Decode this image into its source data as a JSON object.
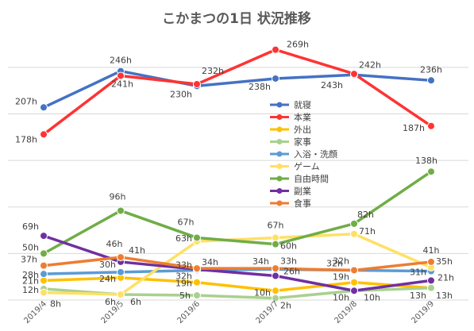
{
  "chart_data": {
    "type": "line",
    "title": "こかまつの1日 状況推移",
    "x": [
      "2019/4",
      "2019/5",
      "2019/6",
      "2019/7",
      "2019/8",
      "2019/9"
    ],
    "ylim": [
      0,
      290
    ],
    "grid": true,
    "legend_position": "center",
    "series": [
      {
        "name": "就寝",
        "color": "#4472C4",
        "values": [
          207,
          246,
          230,
          238,
          242,
          236
        ],
        "labels": [
          "207h",
          "246h",
          "230h",
          "238h",
          "242h",
          "236h"
        ]
      },
      {
        "name": "本業",
        "color": "#FF3333",
        "values": [
          178,
          241,
          232,
          269,
          243,
          187
        ],
        "labels": [
          "178h",
          "241h",
          "232h",
          "269h",
          "243h",
          "187h"
        ]
      },
      {
        "name": "外出",
        "color": "#FFC000",
        "values": [
          21,
          24,
          19,
          10,
          19,
          13
        ],
        "labels": [
          "21h",
          "24h",
          "19h",
          "10h",
          "19h",
          "13h"
        ]
      },
      {
        "name": "家事",
        "color": "#A9D18E",
        "values": [
          12,
          6,
          5,
          2,
          10,
          13
        ],
        "labels": [
          "12h",
          "6h",
          "5h",
          "2h",
          "10h",
          "13h"
        ]
      },
      {
        "name": "入浴・洗顔",
        "color": "#5B9BD5",
        "values": [
          28,
          30,
          32,
          33,
          32,
          31
        ],
        "labels": [
          "28h",
          "30h",
          "32h",
          "33h",
          "32h",
          "31h"
        ]
      },
      {
        "name": "ゲーム",
        "color": "#FFE066",
        "values": [
          8,
          6,
          63,
          67,
          71,
          35
        ],
        "labels": [
          "8h",
          "6h",
          "63h",
          "67h",
          "71h",
          "35h"
        ]
      },
      {
        "name": "自由時間",
        "color": "#70AD47",
        "values": [
          50,
          96,
          67,
          60,
          82,
          138
        ],
        "labels": [
          "50h",
          "96h",
          "67h",
          "60h",
          "82h",
          "138h"
        ]
      },
      {
        "name": "副業",
        "color": "#7030A0",
        "values": [
          69,
          41,
          33,
          26,
          10,
          21
        ],
        "labels": [
          "69h",
          "41h",
          "33h",
          "26h",
          "10h",
          "21h"
        ]
      },
      {
        "name": "食事",
        "color": "#ED7D31",
        "values": [
          37,
          46,
          34,
          34,
          32,
          41
        ],
        "labels": [
          "37h",
          "46h",
          "34h",
          "34h",
          "32h",
          "41h"
        ]
      }
    ]
  }
}
